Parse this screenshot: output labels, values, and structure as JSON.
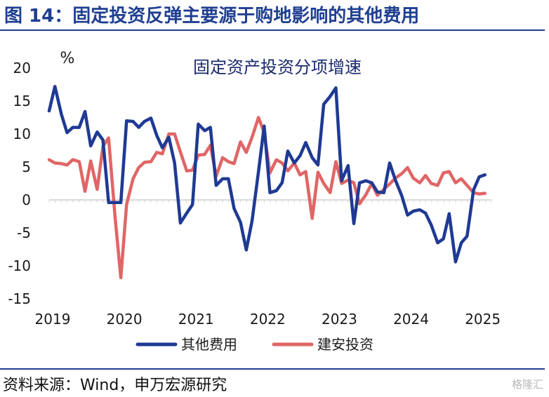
{
  "header": {
    "title": "图 14：固定投资反弹主要源于购地影响的其他费用"
  },
  "footer": {
    "source": "资料来源：Wind，申万宏源研究",
    "watermark": "格隆汇"
  },
  "chart_data": {
    "type": "line",
    "title": "固定资产投资分项增速",
    "ylabel": "%",
    "xlabel": "",
    "ylim": [
      -15,
      20
    ],
    "yticks": [
      20,
      15,
      10,
      5,
      0,
      -5,
      -10,
      -15
    ],
    "xticks": [
      "2019",
      "2020",
      "2021",
      "2022",
      "2023",
      "2024",
      "2025"
    ],
    "xlim": [
      2019.0,
      2025.17
    ],
    "legend_position": "bottom",
    "colors": {
      "其他费用": "#1f3a93",
      "建安投资": "#e06666"
    },
    "series": [
      {
        "name": "其他费用",
        "x": [
          2019.0,
          2019.08,
          2019.17,
          2019.25,
          2019.33,
          2019.42,
          2019.5,
          2019.58,
          2019.67,
          2019.75,
          2019.83,
          2019.92,
          2020.0,
          2020.08,
          2020.17,
          2020.25,
          2020.33,
          2020.42,
          2020.5,
          2020.58,
          2020.67,
          2020.75,
          2020.83,
          2020.92,
          2021.0,
          2021.08,
          2021.17,
          2021.25,
          2021.33,
          2021.42,
          2021.5,
          2021.58,
          2021.67,
          2021.75,
          2021.83,
          2021.92,
          2022.0,
          2022.08,
          2022.17,
          2022.25,
          2022.33,
          2022.42,
          2022.5,
          2022.58,
          2022.67,
          2022.75,
          2022.83,
          2022.92,
          2023.0,
          2023.08,
          2023.17,
          2023.25,
          2023.33,
          2023.42,
          2023.5,
          2023.58,
          2023.67,
          2023.75,
          2023.83,
          2023.92,
          2024.0,
          2024.08,
          2024.17,
          2024.25,
          2024.33,
          2024.42,
          2024.5,
          2024.58,
          2024.67,
          2024.75,
          2024.83,
          2024.92,
          2025.0,
          2025.08
        ],
        "values": [
          13.5,
          17.2,
          13.0,
          10.2,
          11.0,
          11.0,
          13.4,
          8.2,
          10.3,
          9.1,
          -0.4,
          -0.4,
          -0.4,
          12.0,
          11.9,
          11.0,
          11.9,
          12.4,
          9.8,
          7.9,
          9.5,
          5.6,
          -3.5,
          -2.0,
          -0.7,
          11.5,
          10.5,
          11.0,
          2.2,
          3.2,
          3.2,
          -1.3,
          -3.4,
          -7.6,
          -3.2,
          4.3,
          11.2,
          1.1,
          1.4,
          2.6,
          7.4,
          5.6,
          6.7,
          8.7,
          6.4,
          5.3,
          14.5,
          15.7,
          17.0,
          2.9,
          5.2,
          -3.6,
          2.6,
          2.9,
          2.6,
          1.2,
          1.1,
          5.6,
          3.0,
          0.6,
          -2.3,
          -1.7,
          -1.5,
          -2.0,
          -3.8,
          -6.5,
          -5.9,
          -2.1,
          -9.4,
          -6.5,
          -5.5,
          1.5,
          3.5,
          3.8
        ]
      },
      {
        "name": "建安投资",
        "x": [
          2019.0,
          2019.08,
          2019.17,
          2019.25,
          2019.33,
          2019.42,
          2019.5,
          2019.58,
          2019.67,
          2019.75,
          2019.83,
          2019.92,
          2020.0,
          2020.08,
          2020.17,
          2020.25,
          2020.33,
          2020.42,
          2020.5,
          2020.58,
          2020.67,
          2020.75,
          2020.83,
          2020.92,
          2021.0,
          2021.08,
          2021.17,
          2021.25,
          2021.33,
          2021.42,
          2021.5,
          2021.58,
          2021.67,
          2021.75,
          2021.83,
          2021.92,
          2022.0,
          2022.08,
          2022.17,
          2022.25,
          2022.33,
          2022.42,
          2022.5,
          2022.58,
          2022.67,
          2022.75,
          2022.83,
          2022.92,
          2023.0,
          2023.08,
          2023.17,
          2023.25,
          2023.33,
          2023.42,
          2023.5,
          2023.58,
          2023.67,
          2023.75,
          2023.83,
          2023.92,
          2024.0,
          2024.08,
          2024.17,
          2024.25,
          2024.33,
          2024.42,
          2024.5,
          2024.58,
          2024.67,
          2024.75,
          2024.83,
          2024.92,
          2025.0,
          2025.08
        ],
        "values": [
          6.1,
          5.6,
          5.5,
          5.3,
          6.1,
          5.8,
          1.3,
          5.9,
          1.6,
          8.1,
          9.4,
          -2.6,
          -11.8,
          -0.7,
          3.2,
          4.9,
          5.7,
          5.8,
          7.2,
          7.0,
          10.0,
          10.0,
          7.3,
          4.4,
          4.5,
          6.8,
          6.9,
          8.3,
          3.6,
          6.4,
          5.8,
          5.5,
          8.8,
          7.2,
          9.5,
          12.5,
          10.2,
          4.1,
          6.1,
          5.6,
          4.4,
          5.6,
          3.8,
          4.3,
          -2.8,
          4.2,
          2.5,
          1.1,
          5.8,
          2.5,
          3.0,
          2.6,
          -0.6,
          0.8,
          2.5,
          0.7,
          1.6,
          2.4,
          3.3,
          4.0,
          4.9,
          3.3,
          2.6,
          3.7,
          2.5,
          2.2,
          4.1,
          4.3,
          2.6,
          3.2,
          2.2,
          1.1,
          0.9,
          1.0
        ]
      }
    ]
  }
}
